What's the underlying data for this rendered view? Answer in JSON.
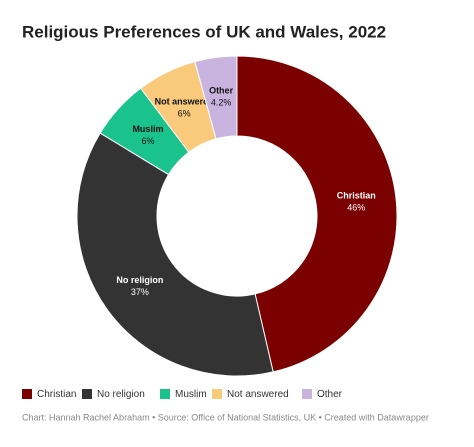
{
  "chart_data": {
    "type": "donut",
    "title": "Religious Preferences of UK and Wales, 2022",
    "categories": [
      "Christian",
      "No religion",
      "Muslim",
      "Not answered",
      "Other"
    ],
    "values": [
      46,
      37,
      6,
      6,
      4.2
    ],
    "value_labels": [
      "46%",
      "37%",
      "6%",
      "6%",
      "4.2%"
    ],
    "colors": [
      "#7b0000",
      "#333333",
      "#1bc38c",
      "#f9c97c",
      "#c9b4e0"
    ],
    "source": "Chart: Hannah Rachel Abraham • Source: Office of National Statistics, UK • Created with Datawrapper"
  }
}
